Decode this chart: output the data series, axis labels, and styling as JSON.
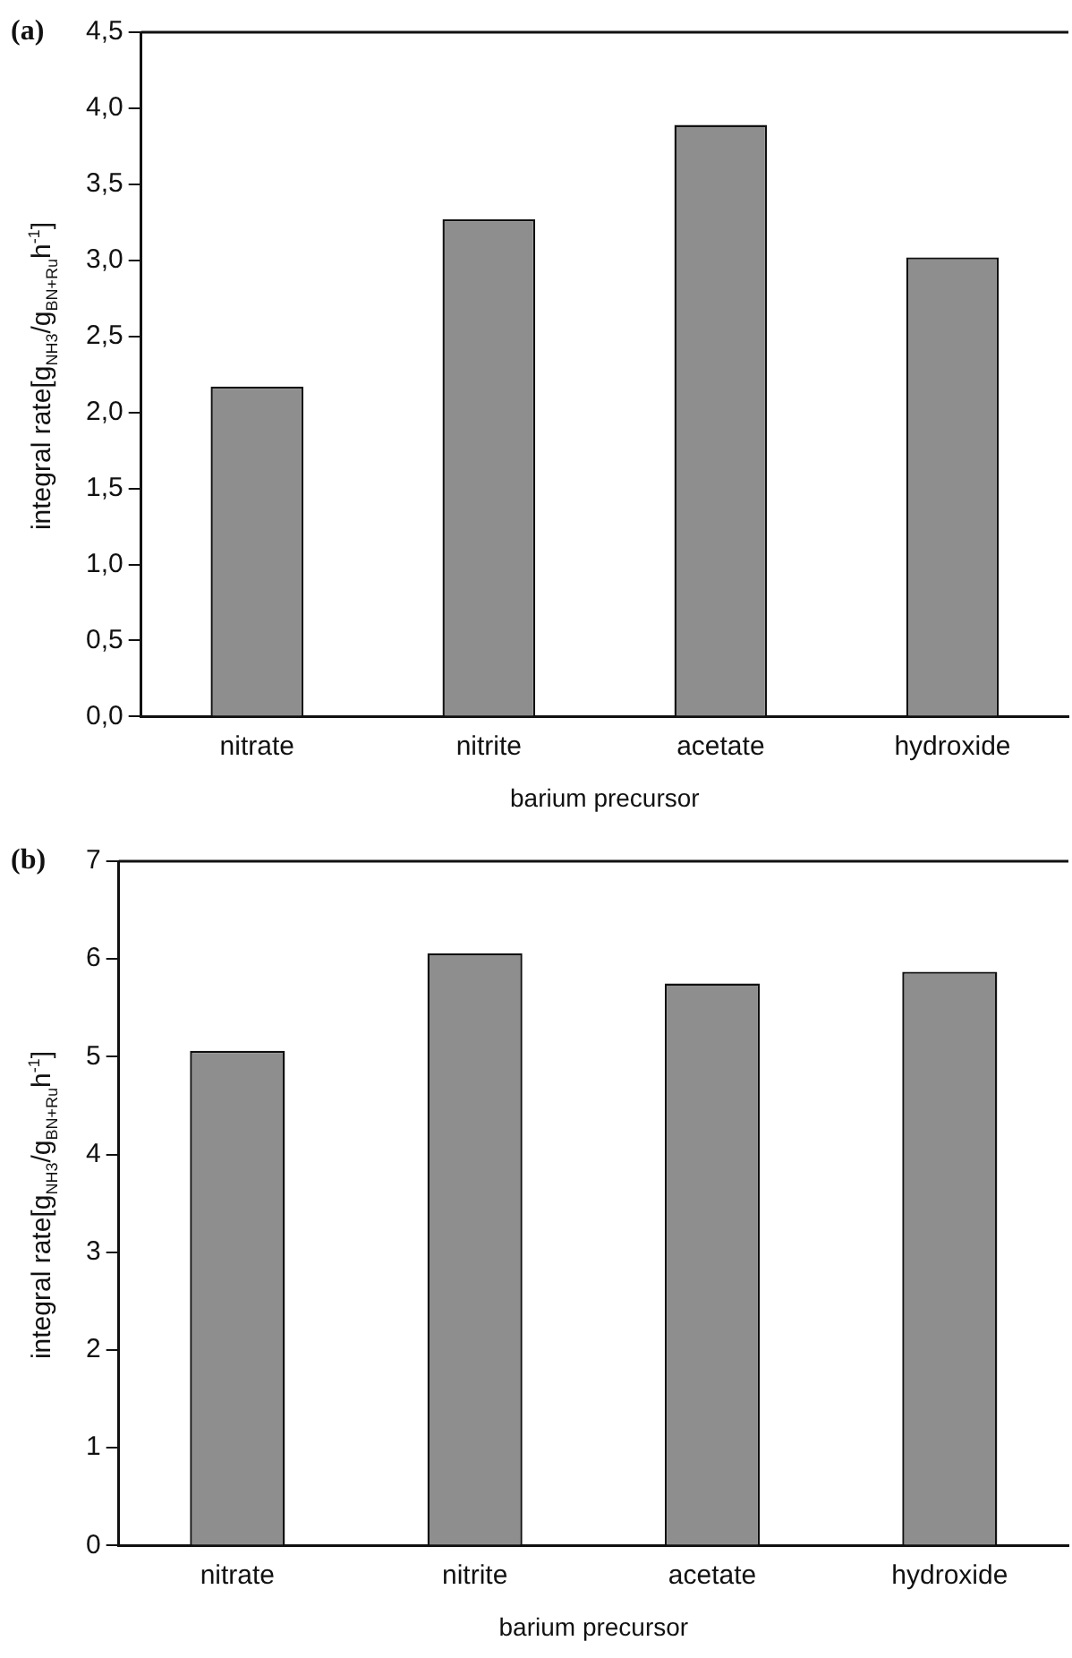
{
  "chart_data": [
    {
      "type": "bar",
      "title": "(a)",
      "xlabel": "barium precursor",
      "ylabel": "integral rate[g$_{NH3}$/g$_{BN+Ru}$h$^{-1}$]",
      "categories": [
        "nitrate",
        "nitrite",
        "acetate",
        "hydroxide"
      ],
      "values": [
        2.17,
        3.27,
        3.89,
        3.02
      ],
      "color": "#8e8e8e",
      "ylim": [
        0,
        4.5
      ],
      "yticks": [
        {
          "value": 0,
          "label": "0,0"
        },
        {
          "value": 0.5,
          "label": "0,5"
        },
        {
          "value": 1,
          "label": "1,0"
        },
        {
          "value": 1.5,
          "label": "1,5"
        },
        {
          "value": 2,
          "label": "2,0"
        },
        {
          "value": 2.5,
          "label": "2,5"
        },
        {
          "value": 3,
          "label": "3,0"
        },
        {
          "value": 3.5,
          "label": "3,5"
        },
        {
          "value": 4,
          "label": "4,0"
        },
        {
          "value": 4.5,
          "label": "4,5"
        }
      ],
      "grid": false
    },
    {
      "type": "bar",
      "title": "(b)",
      "xlabel": "barium precursor",
      "ylabel": "integral rate[g$_{NH3}$/g$_{BN+Ru}$h$^{-1}$]",
      "categories": [
        "nitrate",
        "nitrite",
        "acetate",
        "hydroxide"
      ],
      "values": [
        5.06,
        6.06,
        5.75,
        5.87
      ],
      "color": "#8e8e8e",
      "ylim": [
        0,
        7
      ],
      "yticks": [
        0,
        1,
        2,
        3,
        4,
        5,
        6,
        7
      ],
      "grid": false
    }
  ]
}
